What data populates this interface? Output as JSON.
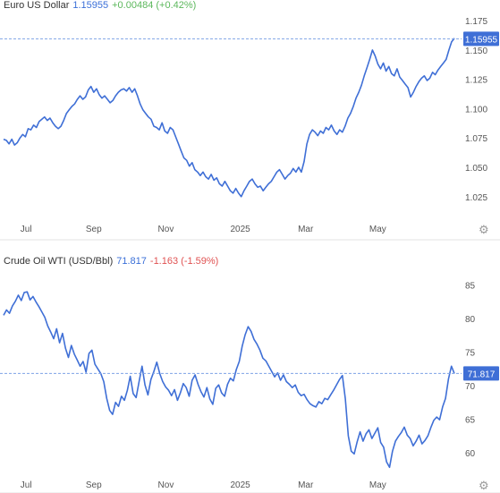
{
  "chart_data": [
    {
      "type": "line",
      "title": "Euro US Dollar",
      "last_price": "1.15955",
      "change": "+0.00484 (+0.42%)",
      "last_label": "1.15955",
      "last_value": 1.15955,
      "ylim": [
        1.005,
        1.182
      ],
      "y_ticks": [
        "1.175",
        "1.150",
        "1.125",
        "1.100",
        "1.075",
        "1.050",
        "1.025"
      ],
      "y_tick_values": [
        1.175,
        1.15,
        1.125,
        1.1,
        1.075,
        1.05,
        1.025
      ],
      "x_ticks": [
        "Jul",
        "Sep",
        "Nov",
        "2025",
        "Mar",
        "May"
      ],
      "x_tick_pos": [
        0.05,
        0.2,
        0.36,
        0.525,
        0.67,
        0.83
      ],
      "series": [
        {
          "values": [
            1.074,
            1.073,
            1.07,
            1.074,
            1.069,
            1.071,
            1.075,
            1.078,
            1.076,
            1.083,
            1.082,
            1.086,
            1.084,
            1.089,
            1.091,
            1.093,
            1.09,
            1.092,
            1.088,
            1.085,
            1.083,
            1.085,
            1.09,
            1.096,
            1.099,
            1.102,
            1.104,
            1.108,
            1.111,
            1.108,
            1.11,
            1.116,
            1.119,
            1.114,
            1.117,
            1.112,
            1.109,
            1.111,
            1.108,
            1.105,
            1.107,
            1.111,
            1.114,
            1.116,
            1.117,
            1.115,
            1.118,
            1.114,
            1.117,
            1.111,
            1.104,
            1.099,
            1.096,
            1.093,
            1.091,
            1.085,
            1.084,
            1.082,
            1.088,
            1.081,
            1.079,
            1.084,
            1.082,
            1.076,
            1.07,
            1.064,
            1.058,
            1.056,
            1.051,
            1.054,
            1.048,
            1.046,
            1.043,
            1.046,
            1.042,
            1.04,
            1.044,
            1.039,
            1.041,
            1.036,
            1.034,
            1.038,
            1.034,
            1.03,
            1.028,
            1.032,
            1.028,
            1.025,
            1.03,
            1.034,
            1.038,
            1.04,
            1.036,
            1.033,
            1.034,
            1.03,
            1.033,
            1.036,
            1.038,
            1.042,
            1.046,
            1.048,
            1.044,
            1.04,
            1.043,
            1.045,
            1.049,
            1.046,
            1.05,
            1.046,
            1.055,
            1.07,
            1.078,
            1.082,
            1.08,
            1.077,
            1.081,
            1.079,
            1.084,
            1.082,
            1.086,
            1.081,
            1.078,
            1.082,
            1.08,
            1.085,
            1.092,
            1.096,
            1.102,
            1.109,
            1.114,
            1.12,
            1.128,
            1.135,
            1.142,
            1.15,
            1.145,
            1.138,
            1.134,
            1.139,
            1.132,
            1.136,
            1.13,
            1.128,
            1.134,
            1.127,
            1.124,
            1.121,
            1.118,
            1.11,
            1.114,
            1.119,
            1.123,
            1.126,
            1.128,
            1.124,
            1.126,
            1.131,
            1.129,
            1.133,
            1.136,
            1.139,
            1.142,
            1.15,
            1.157,
            1.16
          ]
        }
      ]
    },
    {
      "type": "line",
      "title": "Crude Oil WTI (USD/Bbl)",
      "last_price": "71.817",
      "change": "-1.163 (-1.59%)",
      "last_label": "71.817",
      "last_value": 71.817,
      "ylim": [
        56.5,
        87.5
      ],
      "y_ticks": [
        "85",
        "80",
        "75",
        "70",
        "65",
        "60"
      ],
      "y_tick_values": [
        85,
        80,
        75,
        70,
        65,
        60
      ],
      "x_ticks": [
        "Jul",
        "Sep",
        "Nov",
        "2025",
        "Mar",
        "May"
      ],
      "x_tick_pos": [
        0.05,
        0.2,
        0.36,
        0.525,
        0.67,
        0.83
      ],
      "series": [
        {
          "values": [
            80.5,
            81.3,
            80.8,
            81.9,
            82.6,
            83.5,
            82.7,
            83.9,
            84.0,
            82.8,
            83.3,
            82.5,
            81.8,
            81.0,
            80.2,
            78.9,
            78.0,
            77.0,
            78.5,
            76.4,
            77.8,
            75.6,
            74.2,
            76.0,
            74.7,
            73.8,
            72.9,
            73.6,
            72.0,
            74.8,
            75.3,
            73.2,
            72.5,
            71.8,
            70.6,
            68.1,
            66.3,
            65.7,
            67.5,
            66.9,
            68.4,
            67.8,
            69.3,
            71.4,
            68.8,
            68.2,
            70.6,
            72.9,
            70.1,
            68.6,
            70.9,
            72.1,
            73.5,
            71.8,
            70.6,
            69.8,
            69.3,
            68.5,
            69.4,
            67.8,
            68.9,
            70.3,
            69.7,
            68.4,
            70.8,
            71.6,
            70.2,
            69.1,
            68.3,
            69.7,
            68.0,
            67.2,
            69.6,
            70.1,
            68.9,
            68.4,
            70.2,
            71.1,
            70.7,
            72.4,
            73.6,
            75.9,
            77.6,
            78.8,
            78.1,
            76.9,
            76.2,
            75.3,
            74.1,
            73.7,
            72.9,
            72.1,
            71.3,
            71.9,
            70.8,
            71.6,
            70.6,
            70.2,
            69.7,
            70.1,
            69.0,
            68.5,
            68.7,
            67.9,
            67.3,
            67.0,
            66.8,
            67.6,
            67.3,
            68.1,
            67.9,
            68.6,
            69.3,
            70.1,
            70.9,
            71.5,
            68.0,
            62.5,
            60.2,
            59.8,
            61.6,
            63.1,
            61.7,
            62.8,
            63.4,
            62.1,
            62.9,
            63.7,
            61.5,
            60.8,
            58.6,
            57.8,
            60.2,
            61.7,
            62.4,
            63.0,
            63.8,
            62.6,
            62.1,
            61.0,
            61.7,
            62.6,
            61.3,
            61.8,
            62.5,
            63.7,
            64.8,
            65.3,
            64.9,
            66.8,
            68.1,
            71.0,
            72.9,
            71.8
          ]
        }
      ]
    }
  ]
}
